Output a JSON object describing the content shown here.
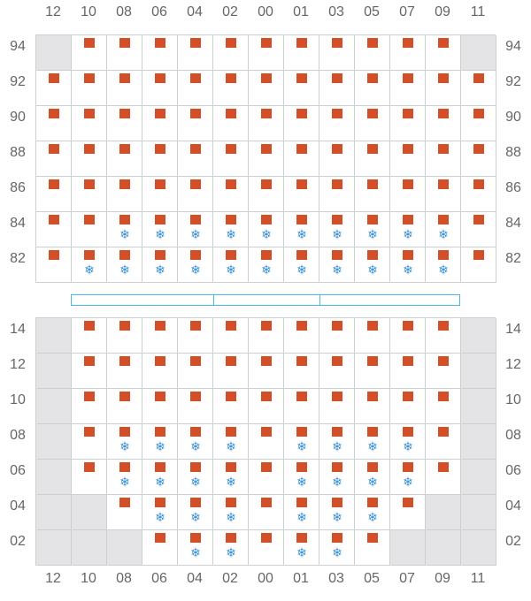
{
  "colors": {
    "rack": "#d24f27",
    "cold": "#3b8fd6",
    "blocked": "#e4e4e6",
    "aisle": "#4ab7e0",
    "grid": "#cfcfcf"
  },
  "icons": {
    "rack": "square-marker",
    "cold": "snowflake-icon"
  },
  "snow_glyph": "❄",
  "columns": [
    "12",
    "10",
    "08",
    "06",
    "04",
    "02",
    "00",
    "01",
    "03",
    "05",
    "07",
    "09",
    "11"
  ],
  "upper_rows": [
    "94",
    "92",
    "90",
    "88",
    "86",
    "84",
    "82"
  ],
  "lower_rows": [
    "14",
    "12",
    "10",
    "08",
    "06",
    "04",
    "02"
  ],
  "upper_grid": [
    "X R R R R R R R R R R R X",
    "R R R R R R R R R R R R R",
    "R R R R R R R R R R R R R",
    "R R R R R R R R R R R R R",
    "R R R R R R R R R R R R R",
    "R R S S S S S S S S S S R",
    "R S S S S S S S S S S S R"
  ],
  "lower_grid": [
    "X R R R R R R R R R R R X",
    "X R R R R R R R R R R R X",
    "X R R R R R R R R R R R X",
    "X R S S S S R S S S S R X",
    "X R S S S S R S S S S R X",
    "X X R S S S R S S S R X X",
    "X X X R S S R S S R X X X"
  ]
}
